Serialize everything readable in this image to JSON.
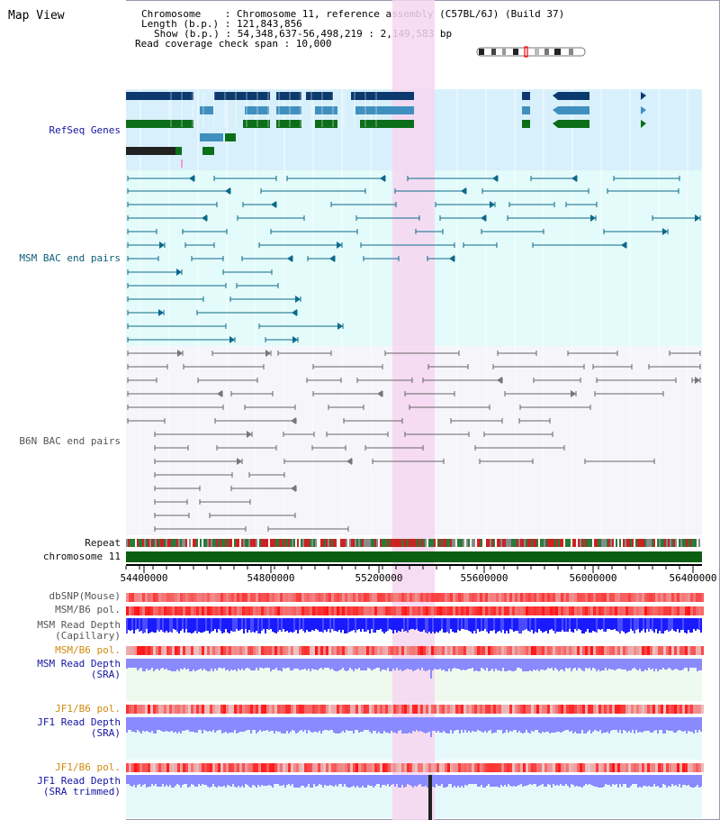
{
  "header": {
    "title": "Map View",
    "info_lines": [
      "Chromosome    : Chromosome 11, reference assembly (C57BL/6J) (Build 37)",
      "Length (b.p.) : 121,843,856",
      "Show (b.p.) : 54,348,637-56,498,219 : 2,149,583 bp",
      "Read coverage check span : 10,000"
    ]
  },
  "tracks": {
    "refseq": "RefSeq Genes",
    "msm_bac": "MSM BAC end pairs",
    "b6n_bac": "B6N BAC end pairs",
    "repeat": "Repeat",
    "chromosome": "chromosome 11",
    "dbsnp": "dbSNP(Mouse)",
    "msm_b6_pol": "MSM/B6 pol.",
    "msm_depth_cap": "MSM Read Depth\n(Capillary)",
    "msm_b6_pol2": "MSM/B6 pol.",
    "msm_depth_sra": "MSM Read Depth\n(SRA)",
    "jf1_b6_pol": "JF1/B6 pol.",
    "jf1_depth_sra": "JF1 Read Depth\n(SRA)",
    "jf1_b6_pol2": "JF1/B6 pol.",
    "jf1_depth_trim": "JF1 Read Depth\n(SRA trimmed)"
  },
  "axis": {
    "ticks": [
      "54400000",
      "54800000",
      "55200000",
      "55600000",
      "56000000",
      "56400000"
    ]
  },
  "colors": {
    "refseq_dark": "#0d3a6e",
    "refseq_mid": "#3f8fbf",
    "refseq_green": "#0d6e1a",
    "msm_line": "#0c6a8a",
    "b6n_line": "#666666",
    "highlight": "#f6d6f0",
    "depth_blue": "#1a1aff",
    "depth_light": "#8a8aff",
    "pol_red": "#e83030"
  }
}
